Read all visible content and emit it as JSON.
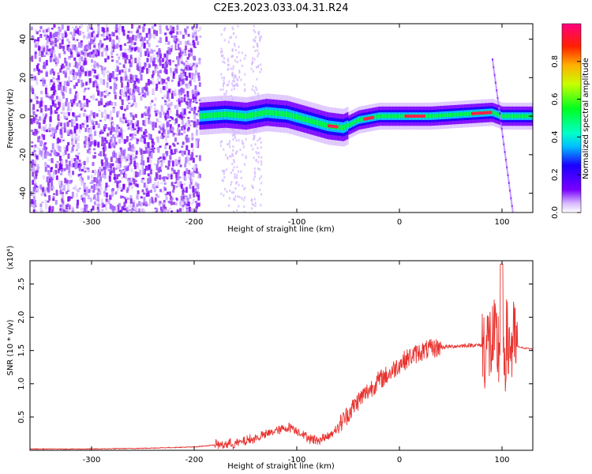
{
  "title": "C2E3.2023.033.04.31.R24",
  "chart_data": [
    {
      "type": "heatmap",
      "xlabel": "Height of straight line (km)",
      "ylabel": "Frequency (Hz)",
      "xlim": [
        -360,
        130
      ],
      "ylim": [
        -50,
        48
      ],
      "xticks": [
        -300,
        -200,
        -100,
        0,
        100
      ],
      "yticks": [
        -40,
        -20,
        0,
        20,
        40
      ],
      "colorbar": {
        "label": "Normalized spectral amplitude",
        "range": [
          0.0,
          1.0
        ],
        "ticks": [
          0.0,
          0.2,
          0.4,
          0.6,
          0.8
        ],
        "colormap": "rainbow-magenta-to-red"
      },
      "ridge": {
        "x": [
          -195,
          -170,
          -150,
          -130,
          -110,
          -90,
          -70,
          -55,
          -40,
          -20,
          0,
          30,
          60,
          90,
          100,
          130
        ],
        "y": [
          0,
          1,
          0,
          2,
          1,
          -2,
          -5,
          -6,
          -2,
          0,
          0,
          0,
          1,
          2,
          0,
          0
        ]
      },
      "noise_region": [
        -360,
        -195
      ]
    },
    {
      "type": "line",
      "xlabel": "Height of straight line (km)",
      "ylabel": "SNR (10 * v/v)",
      "y_multiplier": "(x10⁴)",
      "xlim": [
        -360,
        130
      ],
      "ylim": [
        0,
        2.85
      ],
      "xticks": [
        -300,
        -200,
        -100,
        0,
        100
      ],
      "yticks": [
        0.5,
        1.0,
        1.5,
        2.0,
        2.5
      ],
      "series": [
        {
          "color": "#e8332f",
          "x": [
            -360,
            -300,
            -250,
            -200,
            -180,
            -160,
            -140,
            -120,
            -105,
            -90,
            -80,
            -70,
            -60,
            -50,
            -40,
            -30,
            -20,
            -10,
            0,
            10,
            20,
            30,
            40,
            50,
            60,
            70,
            80,
            90,
            95,
            100,
            105,
            110,
            120,
            130
          ],
          "y": [
            0.02,
            0.02,
            0.03,
            0.05,
            0.08,
            0.1,
            0.18,
            0.3,
            0.35,
            0.2,
            0.15,
            0.2,
            0.35,
            0.55,
            0.75,
            0.9,
            1.05,
            1.15,
            1.3,
            1.4,
            1.48,
            1.52,
            1.55,
            1.56,
            1.57,
            1.58,
            1.58,
            1.6,
            1.55,
            1.5,
            1.6,
            1.58,
            1.54,
            1.52
          ]
        }
      ]
    }
  ]
}
